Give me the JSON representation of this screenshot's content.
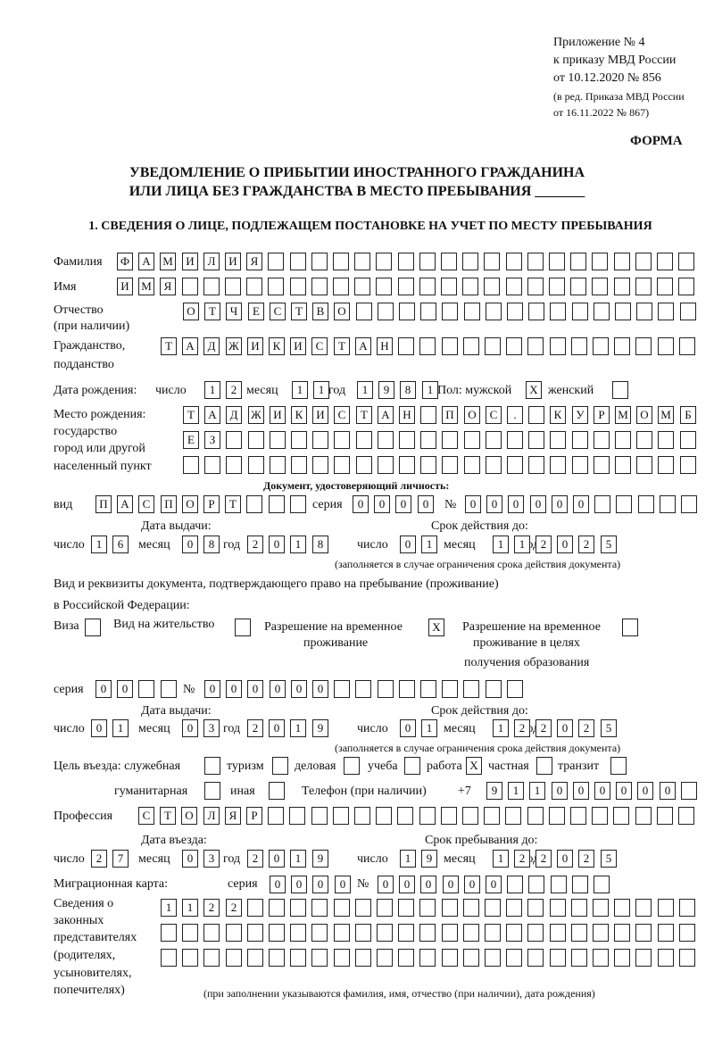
{
  "header": {
    "appendix_line1": "Приложение № 4",
    "appendix_line2": "к приказу МВД России",
    "appendix_line3": "от 10.12.2020 № 856",
    "edit_line1": "(в ред. Приказа МВД России",
    "edit_line2": "от 16.11.2022 № 867)",
    "forma": "ФОРМА",
    "title_line1": "УВЕДОМЛЕНИЕ О ПРИБЫТИИ ИНОСТРАННОГО ГРАЖДАНИНА",
    "title_line2": "ИЛИ ЛИЦА БЕЗ ГРАЖДАНСТВА В МЕСТО ПРЕБЫВАНИЯ _______",
    "section1": "1. СВЕДЕНИЯ О ЛИЦЕ, ПОДЛЕЖАЩЕМ ПОСТАНОВКЕ НА УЧЕТ ПО МЕСТУ ПРЕБЫВАНИЯ"
  },
  "labels": {
    "surname": "Фамилия",
    "name": "Имя",
    "patronymic1": "Отчество",
    "patronymic2": "(при наличии)",
    "citizenship1": "Гражданство,",
    "citizenship2": "подданство",
    "dob": "Дата рождения:",
    "day": "число",
    "month": "месяц",
    "year": "год",
    "sex": "Пол: мужской",
    "female": "женский",
    "pob1": "Место рождения:",
    "pob2": "государство",
    "pob3": "город или другой",
    "pob4": "населенный пункт",
    "id_doc": "Документ, удостоверяющий личность:",
    "kind": "вид",
    "series": "серия",
    "number": "№",
    "issue_date": "Дата выдачи:",
    "valid_until": "Срок действия до:",
    "validity_note": "(заполняется в случае ограничения срока действия документа)",
    "residence_doc1": "Вид и реквизиты документа, подтверждающего право на пребывание (проживание)",
    "residence_doc2": "в Российской Федерации:",
    "visa": "Виза",
    "residence_permit": "Вид на жительство",
    "temp_permit1": "Разрешение на временное",
    "temp_permit2": "проживание",
    "edu_permit1": "Разрешение на временное",
    "edu_permit2": "проживание в целях",
    "edu_permit3": "получения образования",
    "purpose": "Цель въезда: служебная",
    "tourism": "туризм",
    "business": "деловая",
    "study": "учеба",
    "work": "работа",
    "private": "частная",
    "transit": "транзит",
    "humanitarian": "гуманитарная",
    "other": "иная",
    "phone": "Телефон (при наличии)",
    "phone_prefix": "+7",
    "profession": "Профессия",
    "entry_date": "Дата въезда:",
    "stay_until": "Срок пребывания до:",
    "migration_card": "Миграционная карта:",
    "reps1": "Сведения о",
    "reps2": "законных",
    "reps3": "представителях",
    "reps4": "(родителях,",
    "reps5": "усыновителях,",
    "reps6": "попечителях)",
    "reps_note": "(при заполнении указываются фамилия, имя, отчество (при наличии), дата рождения)"
  },
  "fields": {
    "surname": [
      "Ф",
      "А",
      "М",
      "И",
      "Л",
      "И",
      "Я"
    ],
    "name": [
      "И",
      "М",
      "Я"
    ],
    "patronymic": [
      "О",
      "Т",
      "Ч",
      "Е",
      "С",
      "Т",
      "В",
      "О"
    ],
    "citizenship": [
      "Т",
      "А",
      "Д",
      "Ж",
      "И",
      "К",
      "И",
      "С",
      "Т",
      "А",
      "Н"
    ],
    "dob_day": [
      "1",
      "2"
    ],
    "dob_month": [
      "1",
      "1"
    ],
    "dob_year": [
      "1",
      "9",
      "8",
      "1"
    ],
    "sex_male": "X",
    "sex_female": "",
    "pob_1": [
      "Т",
      "А",
      "Д",
      "Ж",
      "И",
      "К",
      "И",
      "С",
      "Т",
      "А",
      "Н",
      "",
      "П",
      "О",
      "С",
      ".",
      "",
      "К",
      "У",
      "Р",
      "М",
      "О",
      "М",
      "Б"
    ],
    "pob_2": [
      "Е",
      "З"
    ],
    "pob_3": [],
    "id_kind": [
      "П",
      "А",
      "С",
      "П",
      "О",
      "Р",
      "Т",
      "",
      "",
      ""
    ],
    "id_series": [
      "0",
      "0",
      "0",
      "0"
    ],
    "id_number": [
      "0",
      "0",
      "0",
      "0",
      "0",
      "0",
      "",
      "",
      "",
      "",
      ""
    ],
    "id_issue_day": [
      "1",
      "6"
    ],
    "id_issue_month": [
      "0",
      "8"
    ],
    "id_issue_year": [
      "2",
      "0",
      "1",
      "8"
    ],
    "id_valid_day": [
      "0",
      "1"
    ],
    "id_valid_month": [
      "1",
      "1"
    ],
    "id_valid_year": [
      "2",
      "0",
      "2",
      "5"
    ],
    "visa": "",
    "residence_permit": "",
    "temp_permit": "X",
    "edu_permit": "",
    "res_series": [
      "0",
      "0",
      "",
      ""
    ],
    "res_number": [
      "0",
      "0",
      "0",
      "0",
      "0",
      "0",
      "",
      "",
      "",
      "",
      "",
      "",
      "",
      "",
      ""
    ],
    "res_issue_day": [
      "0",
      "1"
    ],
    "res_issue_month": [
      "0",
      "3"
    ],
    "res_issue_year": [
      "2",
      "0",
      "1",
      "9"
    ],
    "res_valid_day": [
      "0",
      "1"
    ],
    "res_valid_month": [
      "1",
      "2"
    ],
    "res_valid_year": [
      "2",
      "0",
      "2",
      "5"
    ],
    "purpose_official": "",
    "purpose_tourism": "",
    "purpose_business": "",
    "purpose_study": "",
    "purpose_work": "X",
    "purpose_private": "",
    "purpose_transit": "",
    "purpose_humanitarian": "",
    "purpose_other": "",
    "phone": [
      "9",
      "1",
      "1",
      "0",
      "0",
      "0",
      "0",
      "0",
      "0",
      ""
    ],
    "profession": [
      "С",
      "Т",
      "О",
      "Л",
      "Я",
      "Р"
    ],
    "entry_day": [
      "2",
      "7"
    ],
    "entry_month": [
      "0",
      "3"
    ],
    "entry_year": [
      "2",
      "0",
      "1",
      "9"
    ],
    "stay_day": [
      "1",
      "9"
    ],
    "stay_month": [
      "1",
      "2"
    ],
    "stay_year": [
      "2",
      "0",
      "2",
      "5"
    ],
    "mig_series": [
      "0",
      "0",
      "0",
      "0"
    ],
    "mig_number": [
      "0",
      "0",
      "0",
      "0",
      "0",
      "0",
      "",
      "",
      "",
      "",
      ""
    ],
    "reps_1": [
      "1",
      "1",
      "2",
      "2"
    ],
    "reps_2": [],
    "reps_3": []
  }
}
